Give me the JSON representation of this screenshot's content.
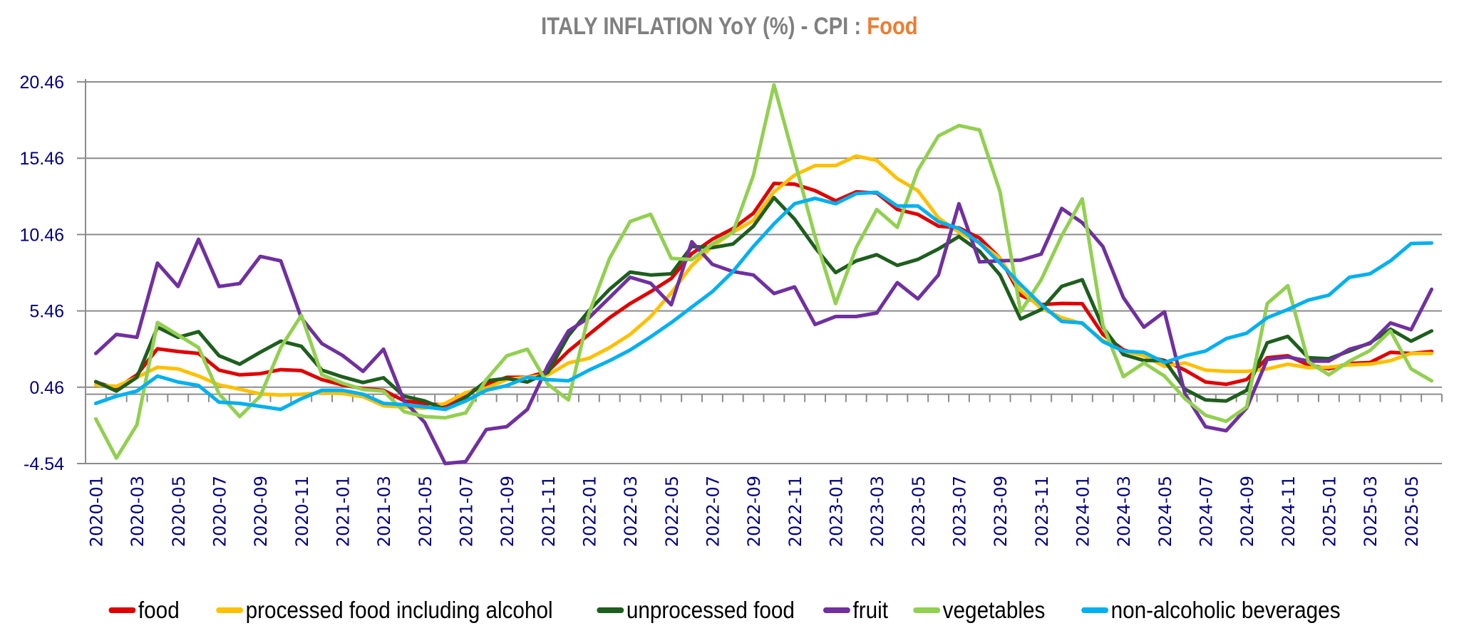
{
  "title": {
    "main": "ITALY INFLATION YoY (%) - CPI : ",
    "accent": "Food",
    "accent_color": "#ED7D31"
  },
  "chart_data": {
    "type": "line",
    "title": "ITALY INFLATION YoY (%) - CPI : Food",
    "xlabel": "",
    "ylabel": "",
    "ylim": [
      -4.54,
      20.46
    ],
    "yticks": [
      "20.46",
      "15.46",
      "10.46",
      "5.46",
      "0.46",
      "-4.54"
    ],
    "ytick_values": [
      20.46,
      15.46,
      10.46,
      5.46,
      0.46,
      -4.54
    ],
    "grid": true,
    "legend_position": "bottom",
    "x": [
      "2020-01",
      "2020-02",
      "2020-03",
      "2020-04",
      "2020-05",
      "2020-06",
      "2020-07",
      "2020-08",
      "2020-09",
      "2020-10",
      "2020-11",
      "2020-12",
      "2021-01",
      "2021-02",
      "2021-03",
      "2021-04",
      "2021-05",
      "2021-06",
      "2021-07",
      "2021-08",
      "2021-09",
      "2021-10",
      "2021-11",
      "2021-12",
      "2022-01",
      "2022-02",
      "2022-03",
      "2022-04",
      "2022-05",
      "2022-06",
      "2022-07",
      "2022-08",
      "2022-09",
      "2022-10",
      "2022-11",
      "2022-12",
      "2023-01",
      "2023-02",
      "2023-03",
      "2023-04",
      "2023-05",
      "2023-06",
      "2023-07",
      "2023-08",
      "2023-09",
      "2023-10",
      "2023-11",
      "2023-12",
      "2024-01",
      "2024-02",
      "2024-03",
      "2024-04",
      "2024-05",
      "2024-06",
      "2024-07",
      "2024-08",
      "2024-09",
      "2024-10",
      "2024-11",
      "2024-12",
      "2025-01",
      "2025-02",
      "2025-03",
      "2025-04",
      "2025-05",
      "2025-06"
    ],
    "xtick_labels": [
      "2020-01",
      "2020-03",
      "2020-05",
      "2020-07",
      "2020-09",
      "2020-11",
      "2021-01",
      "2021-03",
      "2021-05",
      "2021-07",
      "2021-09",
      "2021-11",
      "2022-01",
      "2022-03",
      "2022-05",
      "2022-07",
      "2022-09",
      "2022-11",
      "2023-01",
      "2023-03",
      "2023-05",
      "2023-07",
      "2023-09",
      "2023-11",
      "2024-01",
      "2024-03",
      "2024-05",
      "2024-07",
      "2024-09",
      "2024-11",
      "2025-01",
      "2025-03",
      "2025-05"
    ],
    "series": [
      {
        "name": "food",
        "color": "#E00000",
        "values": [
          0.8,
          0.37,
          1.27,
          2.98,
          2.8,
          2.67,
          1.58,
          1.27,
          1.35,
          1.61,
          1.55,
          0.96,
          0.61,
          0.37,
          0.26,
          -0.43,
          -0.6,
          -0.72,
          0.02,
          0.65,
          1.11,
          1.11,
          1.5,
          2.83,
          3.92,
          5.01,
          5.94,
          6.72,
          7.58,
          9.21,
          10.15,
          10.85,
          11.86,
          13.81,
          13.76,
          13.34,
          12.67,
          13.26,
          13.18,
          12.1,
          11.78,
          11.01,
          10.9,
          10.23,
          8.91,
          6.49,
          5.87,
          5.95,
          5.93,
          3.92,
          2.91,
          2.52,
          2.21,
          1.58,
          0.8,
          0.65,
          0.96,
          2.39,
          2.52,
          1.92,
          1.66,
          2.02,
          2.08,
          2.75,
          2.67,
          2.8
        ]
      },
      {
        "name": "processed food including alcohol",
        "color": "#FFC000",
        "values": [
          0.61,
          0.52,
          1.11,
          1.77,
          1.66,
          1.19,
          0.61,
          0.33,
          0.02,
          -0.05,
          0.0,
          0.1,
          0.05,
          -0.16,
          -0.76,
          -0.83,
          -0.91,
          -0.6,
          0.1,
          0.41,
          0.96,
          1.11,
          1.27,
          2.05,
          2.36,
          3.06,
          3.92,
          5.09,
          6.64,
          8.43,
          9.68,
          10.61,
          11.39,
          13.26,
          14.35,
          14.98,
          14.98,
          15.6,
          15.32,
          14.12,
          13.34,
          11.55,
          10.61,
          9.91,
          8.91,
          6.8,
          5.63,
          5.01,
          4.62,
          3.53,
          2.83,
          2.52,
          1.82,
          2.05,
          1.58,
          1.5,
          1.5,
          1.66,
          1.97,
          1.74,
          1.77,
          1.92,
          1.97,
          2.2,
          2.67,
          2.67
        ]
      },
      {
        "name": "unprocessed food",
        "color": "#1E5E1E",
        "values": [
          0.83,
          0.21,
          1.11,
          4.39,
          3.73,
          4.1,
          2.52,
          1.97,
          2.75,
          3.48,
          3.14,
          1.58,
          1.14,
          0.77,
          1.08,
          -0.13,
          -0.44,
          -0.99,
          -0.21,
          0.88,
          1.04,
          0.8,
          1.43,
          3.84,
          5.48,
          6.88,
          8.0,
          7.81,
          7.89,
          9.68,
          9.6,
          9.84,
          11.01,
          12.88,
          11.47,
          9.6,
          7.97,
          8.74,
          9.14,
          8.44,
          8.83,
          9.52,
          10.33,
          9.37,
          7.81,
          4.93,
          5.55,
          7.07,
          7.5,
          4.39,
          2.6,
          2.21,
          2.21,
          0.33,
          -0.37,
          -0.44,
          0.26,
          3.37,
          3.79,
          2.39,
          2.33,
          2.83,
          3.37,
          4.26,
          3.48,
          4.15
        ]
      },
      {
        "name": "fruit",
        "color": "#7030A0",
        "values": [
          2.67,
          3.92,
          3.73,
          8.59,
          7.06,
          10.15,
          7.06,
          7.25,
          9.03,
          8.74,
          5.0,
          3.32,
          2.55,
          1.5,
          2.95,
          -0.44,
          -1.84,
          -4.54,
          -4.41,
          -2.31,
          -2.12,
          -0.99,
          1.89,
          4.15,
          5.01,
          6.33,
          7.66,
          7.27,
          5.86,
          9.99,
          8.51,
          8.04,
          7.81,
          6.6,
          7.03,
          4.57,
          5.09,
          5.09,
          5.32,
          7.31,
          6.25,
          7.81,
          12.48,
          8.67,
          8.74,
          8.78,
          9.18,
          12.17,
          11.24,
          9.68,
          6.33,
          4.39,
          5.4,
          0.02,
          -2.13,
          -2.39,
          -0.9,
          2.28,
          2.44,
          2.17,
          2.17,
          2.95,
          3.32,
          4.67,
          4.23,
          6.88
        ]
      },
      {
        "name": "vegetables",
        "color": "#92D050",
        "values": [
          -1.61,
          -4.18,
          -2.0,
          4.7,
          3.88,
          3.06,
          0.02,
          -1.46,
          -0.13,
          3.06,
          5.17,
          1.27,
          0.73,
          0.31,
          0.21,
          -1.14,
          -1.46,
          -1.54,
          -1.22,
          0.96,
          2.52,
          2.95,
          0.65,
          -0.37,
          5.32,
          8.9,
          11.32,
          11.79,
          8.9,
          8.82,
          9.84,
          10.61,
          14.35,
          20.27,
          15.29,
          10.31,
          5.94,
          9.6,
          12.1,
          10.93,
          14.67,
          16.92,
          17.6,
          17.31,
          13.26,
          5.4,
          7.5,
          10.38,
          12.8,
          4.54,
          1.15,
          2.05,
          1.19,
          -0.29,
          -1.38,
          -1.77,
          -0.83,
          5.94,
          7.11,
          2.13,
          1.27,
          2.17,
          2.86,
          4.15,
          1.66,
          0.88
        ]
      },
      {
        "name": "non-alcoholic beverages",
        "color": "#00B0F0",
        "values": [
          -0.6,
          -0.13,
          0.21,
          1.19,
          0.8,
          0.57,
          -0.52,
          -0.6,
          -0.79,
          -0.99,
          -0.29,
          0.26,
          0.26,
          0.0,
          -0.6,
          -0.68,
          -0.83,
          -0.99,
          -0.44,
          0.26,
          0.57,
          1.11,
          0.96,
          0.88,
          1.58,
          2.2,
          2.9,
          3.76,
          4.69,
          5.71,
          6.72,
          8.04,
          9.68,
          11.16,
          12.48,
          12.83,
          12.48,
          13.14,
          13.23,
          12.33,
          12.33,
          11.31,
          10.85,
          9.91,
          8.59,
          7.19,
          5.87,
          4.77,
          4.67,
          3.45,
          2.83,
          2.75,
          2.08,
          2.52,
          2.83,
          3.64,
          4.0,
          5.01,
          5.55,
          6.17,
          6.49,
          7.66,
          7.89,
          8.74,
          9.87,
          9.91
        ]
      }
    ]
  }
}
